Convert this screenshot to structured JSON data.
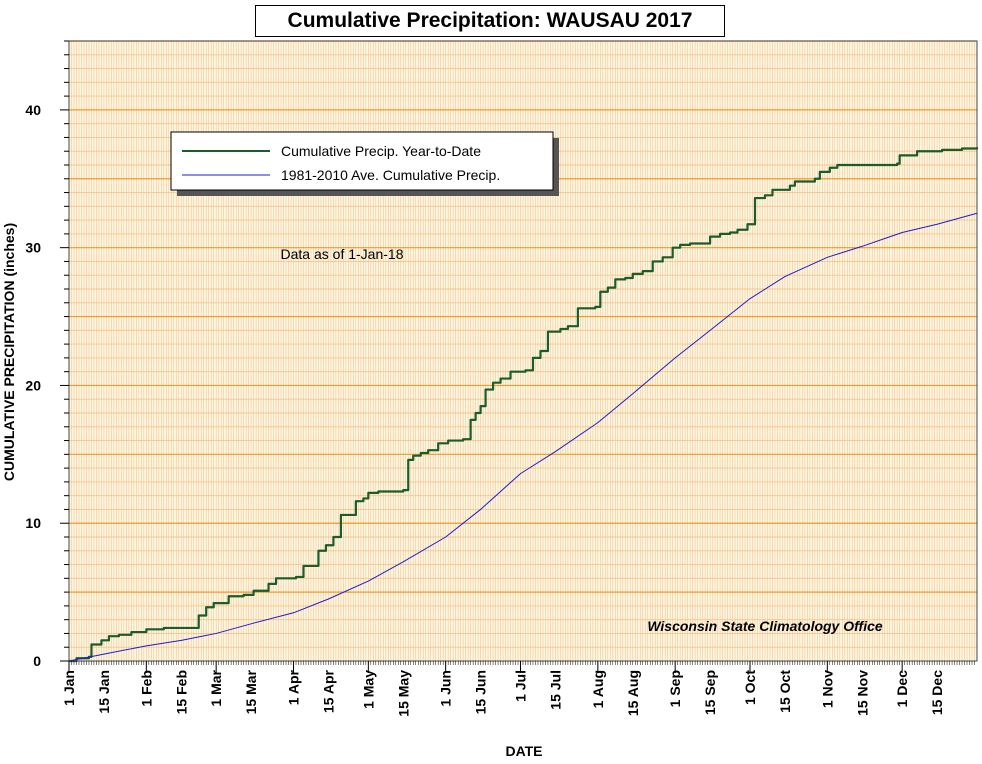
{
  "chart_data": {
    "type": "line",
    "title": "Cumulative Precipitation: WAUSAU 2017",
    "xlabel": "DATE",
    "ylabel": "CUMULATIVE PRECIPITATION (inches)",
    "ylim": [
      0,
      45
    ],
    "xlim": [
      "2017-01-01",
      "2017-12-31"
    ],
    "y_ticks": [
      0,
      10,
      20,
      30,
      40
    ],
    "x_ticks": [
      {
        "date": "2017-01-01",
        "label": "1 Jan"
      },
      {
        "date": "2017-01-15",
        "label": "15 Jan"
      },
      {
        "date": "2017-02-01",
        "label": "1 Feb"
      },
      {
        "date": "2017-02-15",
        "label": "15 Feb"
      },
      {
        "date": "2017-03-01",
        "label": "1 Mar"
      },
      {
        "date": "2017-03-15",
        "label": "15 Mar"
      },
      {
        "date": "2017-04-01",
        "label": "1 Apr"
      },
      {
        "date": "2017-04-15",
        "label": "15 Apr"
      },
      {
        "date": "2017-05-01",
        "label": "1 May"
      },
      {
        "date": "2017-05-15",
        "label": "15 May"
      },
      {
        "date": "2017-06-01",
        "label": "1 Jun"
      },
      {
        "date": "2017-06-15",
        "label": "15 Jun"
      },
      {
        "date": "2017-07-01",
        "label": "1 Jul"
      },
      {
        "date": "2017-07-15",
        "label": "15 Jul"
      },
      {
        "date": "2017-08-01",
        "label": "1 Aug"
      },
      {
        "date": "2017-08-15",
        "label": "15 Aug"
      },
      {
        "date": "2017-09-01",
        "label": "1 Sep"
      },
      {
        "date": "2017-09-15",
        "label": "15 Sep"
      },
      {
        "date": "2017-10-01",
        "label": "1 Oct"
      },
      {
        "date": "2017-10-15",
        "label": "15 Oct"
      },
      {
        "date": "2017-11-01",
        "label": "1 Nov"
      },
      {
        "date": "2017-11-15",
        "label": "15 Nov"
      },
      {
        "date": "2017-12-01",
        "label": "1 Dec"
      },
      {
        "date": "2017-12-15",
        "label": "15 Dec"
      }
    ],
    "grid": true,
    "legend_position": "upper-left",
    "annotations": {
      "data_as_of": "Data as of 1-Jan-18",
      "source": "Wisconsin State Climatology Office"
    },
    "series": [
      {
        "name": "Cumulative Precip. Year-to-Date",
        "color": "#1a5c2a",
        "step": true,
        "points": [
          [
            "2017-01-01",
            0.0
          ],
          [
            "2017-01-04",
            0.2
          ],
          [
            "2017-01-09",
            0.3
          ],
          [
            "2017-01-10",
            1.2
          ],
          [
            "2017-01-14",
            1.5
          ],
          [
            "2017-01-17",
            1.8
          ],
          [
            "2017-01-21",
            1.9
          ],
          [
            "2017-01-26",
            2.1
          ],
          [
            "2017-02-01",
            2.3
          ],
          [
            "2017-02-08",
            2.4
          ],
          [
            "2017-02-22",
            3.3
          ],
          [
            "2017-02-25",
            3.9
          ],
          [
            "2017-02-28",
            4.2
          ],
          [
            "2017-03-06",
            4.7
          ],
          [
            "2017-03-12",
            4.8
          ],
          [
            "2017-03-16",
            5.1
          ],
          [
            "2017-03-22",
            5.6
          ],
          [
            "2017-03-25",
            6.0
          ],
          [
            "2017-04-02",
            6.1
          ],
          [
            "2017-04-05",
            6.9
          ],
          [
            "2017-04-11",
            8.0
          ],
          [
            "2017-04-14",
            8.4
          ],
          [
            "2017-04-17",
            9.0
          ],
          [
            "2017-04-20",
            10.6
          ],
          [
            "2017-04-26",
            11.6
          ],
          [
            "2017-04-29",
            11.8
          ],
          [
            "2017-05-01",
            12.2
          ],
          [
            "2017-05-05",
            12.3
          ],
          [
            "2017-05-15",
            12.4
          ],
          [
            "2017-05-17",
            14.6
          ],
          [
            "2017-05-19",
            14.9
          ],
          [
            "2017-05-22",
            15.1
          ],
          [
            "2017-05-25",
            15.3
          ],
          [
            "2017-05-29",
            15.8
          ],
          [
            "2017-06-02",
            16.0
          ],
          [
            "2017-06-08",
            16.1
          ],
          [
            "2017-06-11",
            17.5
          ],
          [
            "2017-06-13",
            18.0
          ],
          [
            "2017-06-15",
            18.5
          ],
          [
            "2017-06-17",
            19.7
          ],
          [
            "2017-06-20",
            20.2
          ],
          [
            "2017-06-23",
            20.5
          ],
          [
            "2017-06-27",
            21.0
          ],
          [
            "2017-07-03",
            21.1
          ],
          [
            "2017-07-06",
            22.0
          ],
          [
            "2017-07-09",
            22.5
          ],
          [
            "2017-07-12",
            23.9
          ],
          [
            "2017-07-17",
            24.1
          ],
          [
            "2017-07-20",
            24.3
          ],
          [
            "2017-07-24",
            25.6
          ],
          [
            "2017-07-31",
            25.7
          ],
          [
            "2017-08-02",
            26.8
          ],
          [
            "2017-08-05",
            27.1
          ],
          [
            "2017-08-08",
            27.7
          ],
          [
            "2017-08-12",
            27.8
          ],
          [
            "2017-08-15",
            28.1
          ],
          [
            "2017-08-19",
            28.3
          ],
          [
            "2017-08-23",
            29.0
          ],
          [
            "2017-08-27",
            29.3
          ],
          [
            "2017-08-31",
            30.0
          ],
          [
            "2017-09-03",
            30.2
          ],
          [
            "2017-09-07",
            30.3
          ],
          [
            "2017-09-15",
            30.8
          ],
          [
            "2017-09-19",
            31.0
          ],
          [
            "2017-09-23",
            31.1
          ],
          [
            "2017-09-26",
            31.3
          ],
          [
            "2017-09-30",
            31.7
          ],
          [
            "2017-10-03",
            33.6
          ],
          [
            "2017-10-07",
            33.8
          ],
          [
            "2017-10-10",
            34.2
          ],
          [
            "2017-10-17",
            34.5
          ],
          [
            "2017-10-19",
            34.8
          ],
          [
            "2017-10-27",
            35.0
          ],
          [
            "2017-10-29",
            35.5
          ],
          [
            "2017-11-02",
            35.8
          ],
          [
            "2017-11-05",
            36.0
          ],
          [
            "2017-11-29",
            36.1
          ],
          [
            "2017-11-30",
            36.7
          ],
          [
            "2017-12-07",
            37.0
          ],
          [
            "2017-12-17",
            37.1
          ],
          [
            "2017-12-25",
            37.2
          ],
          [
            "2017-12-31",
            37.3
          ]
        ]
      },
      {
        "name": "1981-2010 Ave. Cumulative Precip.",
        "color": "#1c1cd0",
        "step": false,
        "points": [
          [
            "2017-01-01",
            0.0
          ],
          [
            "2017-01-15",
            0.5
          ],
          [
            "2017-02-01",
            1.1
          ],
          [
            "2017-02-15",
            1.5
          ],
          [
            "2017-03-01",
            2.0
          ],
          [
            "2017-03-15",
            2.7
          ],
          [
            "2017-04-01",
            3.5
          ],
          [
            "2017-04-15",
            4.5
          ],
          [
            "2017-05-01",
            5.8
          ],
          [
            "2017-05-15",
            7.2
          ],
          [
            "2017-06-01",
            9.0
          ],
          [
            "2017-06-15",
            11.0
          ],
          [
            "2017-07-01",
            13.6
          ],
          [
            "2017-07-15",
            15.2
          ],
          [
            "2017-08-01",
            17.3
          ],
          [
            "2017-08-15",
            19.4
          ],
          [
            "2017-09-01",
            22.0
          ],
          [
            "2017-09-15",
            24.0
          ],
          [
            "2017-10-01",
            26.3
          ],
          [
            "2017-10-15",
            27.9
          ],
          [
            "2017-11-01",
            29.3
          ],
          [
            "2017-11-15",
            30.1
          ],
          [
            "2017-12-01",
            31.1
          ],
          [
            "2017-12-15",
            31.7
          ],
          [
            "2017-12-31",
            32.5
          ]
        ]
      }
    ]
  },
  "style": {
    "plot_background": "#fdf7df",
    "major_grid_color": "#f19a2a",
    "minor_grid_color": "#f7c48a",
    "vertical_grid_color": "#f3c49a"
  }
}
